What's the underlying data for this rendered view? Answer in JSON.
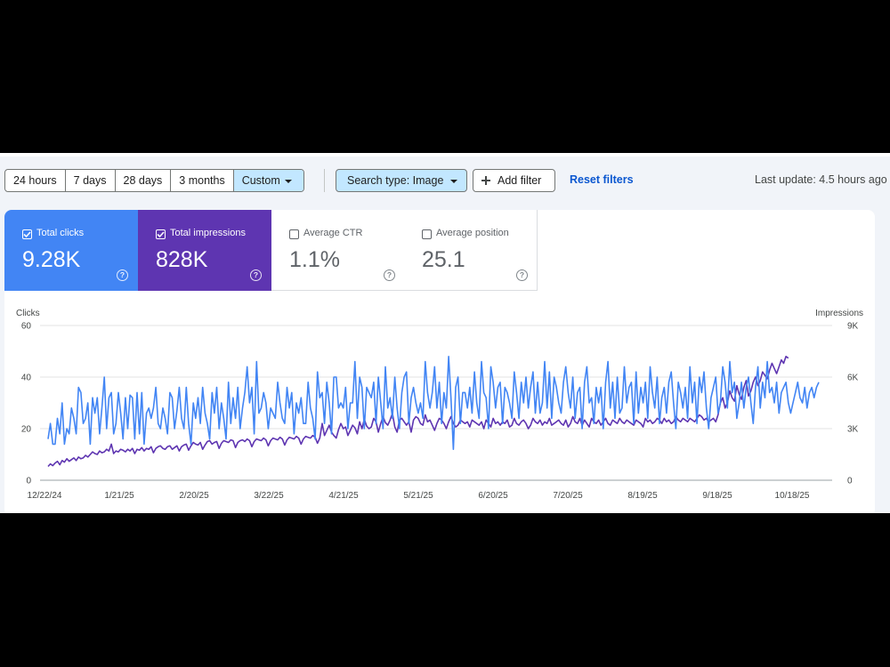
{
  "toolbar": {
    "ranges": [
      "24 hours",
      "7 days",
      "28 days",
      "3 months",
      "Custom"
    ],
    "active_range": "Custom",
    "search_type": "Search type: Image",
    "add_filter": "Add filter",
    "reset_filters": "Reset filters",
    "last_update": "Last update: 4.5 hours ago"
  },
  "metrics": [
    {
      "label": "Total clicks",
      "value": "9.28K",
      "checked": true,
      "color": "#4285f4"
    },
    {
      "label": "Total impressions",
      "value": "828K",
      "checked": true,
      "color": "#5e35b1"
    },
    {
      "label": "Average CTR",
      "value": "1.1%",
      "checked": false
    },
    {
      "label": "Average position",
      "value": "25.1",
      "checked": false
    }
  ],
  "chart_data": {
    "type": "line",
    "y_left_label": "Clicks",
    "y_right_label": "Impressions",
    "y_left_ticks": [
      "60",
      "40",
      "20",
      "0"
    ],
    "y_right_ticks": [
      "9K",
      "6K",
      "3K",
      "0"
    ],
    "y_left_range": [
      0,
      60
    ],
    "y_right_range": [
      0,
      9000
    ],
    "x_ticks": [
      "12/22/24",
      "1/21/25",
      "2/20/25",
      "3/22/25",
      "4/21/25",
      "5/21/25",
      "6/20/25",
      "7/20/25",
      "8/19/25",
      "9/18/25",
      "10/18/25"
    ],
    "start_date": "12/22/24",
    "days": 330,
    "grid": true,
    "series": [
      {
        "name": "Total clicks",
        "axis": "left",
        "color": "#4285f4",
        "values": [
          16,
          22,
          14,
          14,
          24,
          18,
          30,
          14,
          20,
          18,
          28,
          24,
          18,
          36,
          34,
          22,
          24,
          30,
          14,
          32,
          26,
          32,
          18,
          28,
          40,
          20,
          32,
          34,
          18,
          22,
          34,
          26,
          16,
          32,
          20,
          33,
          32,
          16,
          34,
          18,
          34,
          14,
          26,
          28,
          24,
          28,
          36,
          22,
          20,
          28,
          24,
          18,
          34,
          32,
          20,
          27,
          36,
          24,
          20,
          36,
          22,
          14,
          30,
          24,
          32,
          22,
          36,
          26,
          22,
          16,
          34,
          26,
          36,
          20,
          30,
          24,
          16,
          38,
          22,
          32,
          24,
          36,
          20,
          28,
          34,
          44,
          30,
          36,
          18,
          46,
          26,
          28,
          34,
          30,
          20,
          28,
          26,
          24,
          38,
          30,
          24,
          22,
          36,
          28,
          34,
          18,
          30,
          26,
          32,
          22,
          22,
          38,
          28,
          24,
          16,
          42,
          32,
          34,
          22,
          38,
          30,
          18,
          40,
          40,
          28,
          30,
          28,
          36,
          20,
          30,
          30,
          46,
          24,
          40,
          36,
          20,
          36,
          34,
          32,
          38,
          22,
          40,
          30,
          20,
          44,
          28,
          32,
          24,
          40,
          28,
          20,
          34,
          40,
          42,
          22,
          32,
          36,
          30,
          26,
          30,
          24,
          46,
          34,
          28,
          34,
          44,
          28,
          38,
          22,
          34,
          28,
          48,
          32,
          12,
          36,
          40,
          22,
          34,
          34,
          28,
          36,
          26,
          42,
          30,
          24,
          46,
          34,
          32,
          20,
          44,
          38,
          28,
          36,
          38,
          22,
          36,
          34,
          30,
          24,
          42,
          34,
          24,
          38,
          30,
          40,
          28,
          36,
          42,
          26,
          38,
          26,
          30,
          46,
          28,
          42,
          24,
          40,
          36,
          30,
          26,
          38,
          44,
          34,
          28,
          40,
          24,
          34,
          36,
          20,
          38,
          44,
          30,
          32,
          22,
          36,
          30,
          36,
          20,
          38,
          46,
          28,
          38,
          24,
          40,
          26,
          28,
          44,
          30,
          36,
          38,
          22,
          42,
          26,
          36,
          30,
          38,
          24,
          44,
          34,
          28,
          40,
          22,
          32,
          36,
          26,
          38,
          42,
          30,
          20,
          38,
          34,
          28,
          36,
          24,
          44,
          30,
          38,
          22,
          40,
          34,
          42,
          28,
          20,
          32,
          36,
          40,
          26,
          30,
          44,
          38,
          28,
          46,
          34,
          38,
          24,
          30,
          38,
          28,
          36,
          40,
          30,
          22,
          36,
          44,
          28,
          38,
          32,
          46,
          34,
          36,
          30,
          38,
          26,
          34,
          36,
          38,
          30,
          26,
          30,
          34,
          38,
          32,
          30,
          36,
          28,
          34,
          36,
          32,
          36,
          38
        ]
      },
      {
        "name": "Total impressions",
        "axis": "right",
        "color": "#5e35b1",
        "values": [
          800,
          950,
          850,
          1000,
          1100,
          900,
          1150,
          1050,
          1250,
          1100,
          1200,
          1300,
          1150,
          1350,
          1250,
          1300,
          1450,
          1350,
          1500,
          1650,
          1550,
          1500,
          1700,
          1600,
          1650,
          1800,
          1700,
          2100,
          1550,
          1700,
          1650,
          1800,
          1750,
          1650,
          1800,
          1700,
          1850,
          1550,
          1800,
          1750,
          1900,
          1700,
          1850,
          1800,
          1950,
          1600,
          1850,
          1950,
          2000,
          1850,
          1800,
          1950,
          2000,
          1800,
          1900,
          2000,
          1700,
          1950,
          2050,
          2100,
          1750,
          2000,
          2200,
          2100,
          2050,
          2200,
          1800,
          2050,
          2250,
          2300,
          2100,
          2200,
          2250,
          1850,
          2150,
          2300,
          2250,
          2200,
          2350,
          2300,
          1900,
          2200,
          2300,
          2350,
          2250,
          2400,
          2300,
          1950,
          2250,
          2400,
          2350,
          2300,
          2450,
          2350,
          2000,
          2300,
          2450,
          2400,
          2350,
          2500,
          2400,
          2050,
          2350,
          2500,
          2450,
          2400,
          2550,
          2450,
          2100,
          2400,
          2550,
          2500,
          2450,
          2600,
          2500,
          2150,
          2450,
          3300,
          2600,
          2900,
          3200,
          2800,
          2600,
          2450,
          2950,
          3300,
          3000,
          3100,
          2600,
          2900,
          3200,
          3050,
          2700,
          3400,
          3000,
          3550,
          3150,
          3000,
          3100,
          3600,
          3400,
          2800,
          3300,
          3700,
          3350,
          3200,
          3500,
          3900,
          3100,
          2800,
          3500,
          3600,
          3400,
          3200,
          3400,
          2800,
          3500,
          3700,
          3600,
          3300,
          3200,
          3800,
          3400,
          3500,
          3200,
          2900,
          3300,
          3600,
          3500,
          3300,
          3000,
          3400,
          3700,
          3300,
          3100,
          3200,
          3500,
          3400,
          3300,
          3400,
          3100,
          3500,
          3400,
          3300,
          3200,
          3400,
          3000,
          3500,
          3300,
          3100,
          3600,
          3300,
          3400,
          3200,
          3400,
          3300,
          3500,
          3100,
          3200,
          3600,
          3300,
          3200,
          3400,
          3500,
          3300,
          3000,
          3200,
          3600,
          3400,
          3300,
          3500,
          3200,
          3400,
          3300,
          3600,
          3200,
          3300,
          3400,
          3500,
          3300,
          3200,
          3500,
          3100,
          3300,
          3700,
          3400,
          3300,
          3600,
          3200,
          3500,
          3300,
          3100,
          3600,
          3400,
          3300,
          3500,
          3200,
          3400,
          3600,
          3300,
          3200,
          3500,
          3400,
          3300,
          3600,
          3400,
          3300,
          3500,
          3400,
          3300,
          3200,
          3500,
          3400,
          3300,
          3100,
          3600,
          3400,
          3500,
          3300,
          3400,
          3600,
          3500,
          3300,
          3600,
          3400,
          3500,
          3300,
          3400,
          3700,
          3500,
          3400,
          3600,
          3500,
          3400,
          3600,
          3500,
          3400,
          3600,
          3800,
          3700,
          3500,
          3600,
          3400,
          3500,
          3600,
          3400,
          3800,
          4500,
          4800,
          4200,
          4500,
          5200,
          4800,
          4600,
          5500,
          5000,
          4700,
          5400,
          5800,
          4900,
          5200,
          5700,
          6000,
          5500,
          5800,
          6300,
          6100,
          5900,
          6400,
          6800,
          6500,
          6200,
          6600,
          7000,
          6800,
          7200,
          7100
        ]
      }
    ]
  }
}
